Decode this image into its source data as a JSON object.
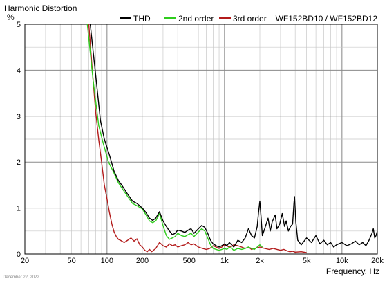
{
  "chart_data": {
    "type": "line",
    "title": "Harmonic Distortion",
    "ylabel": "%",
    "xlabel": "Frequency, Hz",
    "subtitle": "WF152BD10 / WF152BD12",
    "date": "December 22, 2022",
    "x_scale": "log",
    "xlim": [
      20,
      20000
    ],
    "ylim": [
      0,
      5
    ],
    "grid": true,
    "legend_position": "top",
    "x_ticks": [
      {
        "v": 20,
        "label": "20"
      },
      {
        "v": 50,
        "label": "50"
      },
      {
        "v": 100,
        "label": "100"
      },
      {
        "v": 200,
        "label": "200"
      },
      {
        "v": 500,
        "label": "500"
      },
      {
        "v": 1000,
        "label": "1k"
      },
      {
        "v": 2000,
        "label": "2k"
      },
      {
        "v": 5000,
        "label": "5k"
      },
      {
        "v": 10000,
        "label": "10k"
      },
      {
        "v": 20000,
        "label": "20k"
      }
    ],
    "y_ticks": [
      0,
      1,
      2,
      3,
      4,
      5
    ],
    "series": [
      {
        "name": "THD",
        "color": "#000000",
        "points": [
          [
            72,
            5
          ],
          [
            80,
            3.9
          ],
          [
            88,
            2.9
          ],
          [
            95,
            2.5
          ],
          [
            105,
            2.15
          ],
          [
            115,
            1.8
          ],
          [
            125,
            1.6
          ],
          [
            135,
            1.48
          ],
          [
            150,
            1.3
          ],
          [
            165,
            1.15
          ],
          [
            180,
            1.1
          ],
          [
            200,
            1.0
          ],
          [
            215,
            0.9
          ],
          [
            230,
            0.78
          ],
          [
            245,
            0.73
          ],
          [
            260,
            0.78
          ],
          [
            280,
            0.92
          ],
          [
            300,
            0.72
          ],
          [
            320,
            0.6
          ],
          [
            340,
            0.5
          ],
          [
            360,
            0.42
          ],
          [
            380,
            0.45
          ],
          [
            400,
            0.52
          ],
          [
            430,
            0.5
          ],
          [
            460,
            0.47
          ],
          [
            490,
            0.52
          ],
          [
            520,
            0.55
          ],
          [
            550,
            0.45
          ],
          [
            600,
            0.55
          ],
          [
            640,
            0.62
          ],
          [
            680,
            0.58
          ],
          [
            720,
            0.45
          ],
          [
            760,
            0.3
          ],
          [
            800,
            0.22
          ],
          [
            850,
            0.18
          ],
          [
            900,
            0.15
          ],
          [
            950,
            0.18
          ],
          [
            1000,
            0.22
          ],
          [
            1050,
            0.18
          ],
          [
            1100,
            0.25
          ],
          [
            1150,
            0.2
          ],
          [
            1200,
            0.15
          ],
          [
            1300,
            0.3
          ],
          [
            1400,
            0.25
          ],
          [
            1500,
            0.35
          ],
          [
            1600,
            0.55
          ],
          [
            1700,
            0.4
          ],
          [
            1800,
            0.35
          ],
          [
            1900,
            0.6
          ],
          [
            1950,
            0.9
          ],
          [
            2000,
            1.15
          ],
          [
            2050,
            0.8
          ],
          [
            2100,
            0.4
          ],
          [
            2200,
            0.55
          ],
          [
            2350,
            0.78
          ],
          [
            2450,
            0.5
          ],
          [
            2550,
            0.7
          ],
          [
            2700,
            0.85
          ],
          [
            2800,
            0.55
          ],
          [
            2950,
            0.65
          ],
          [
            3100,
            0.88
          ],
          [
            3250,
            0.6
          ],
          [
            3350,
            0.72
          ],
          [
            3500,
            0.5
          ],
          [
            3650,
            0.6
          ],
          [
            3800,
            0.65
          ],
          [
            3900,
            1.1
          ],
          [
            3950,
            1.25
          ],
          [
            4050,
            0.7
          ],
          [
            4200,
            0.3
          ],
          [
            4500,
            0.2
          ],
          [
            5000,
            0.35
          ],
          [
            5500,
            0.25
          ],
          [
            6000,
            0.4
          ],
          [
            6500,
            0.22
          ],
          [
            7000,
            0.3
          ],
          [
            7500,
            0.2
          ],
          [
            8000,
            0.25
          ],
          [
            8500,
            0.15
          ],
          [
            9000,
            0.2
          ],
          [
            10000,
            0.25
          ],
          [
            11000,
            0.18
          ],
          [
            12000,
            0.22
          ],
          [
            13000,
            0.28
          ],
          [
            14000,
            0.2
          ],
          [
            15000,
            0.25
          ],
          [
            16000,
            0.18
          ],
          [
            17000,
            0.3
          ],
          [
            18000,
            0.45
          ],
          [
            18500,
            0.55
          ],
          [
            19000,
            0.35
          ],
          [
            19500,
            0.4
          ],
          [
            20000,
            0.5
          ]
        ]
      },
      {
        "name": "2nd order",
        "color": "#2ecc1c",
        "points": [
          [
            68,
            5
          ],
          [
            76,
            3.8
          ],
          [
            85,
            2.8
          ],
          [
            93,
            2.4
          ],
          [
            103,
            2.0
          ],
          [
            113,
            1.8
          ],
          [
            125,
            1.55
          ],
          [
            135,
            1.42
          ],
          [
            150,
            1.25
          ],
          [
            165,
            1.1
          ],
          [
            180,
            1.05
          ],
          [
            200,
            0.98
          ],
          [
            215,
            0.85
          ],
          [
            230,
            0.72
          ],
          [
            245,
            0.68
          ],
          [
            260,
            0.72
          ],
          [
            280,
            0.88
          ],
          [
            300,
            0.62
          ],
          [
            320,
            0.4
          ],
          [
            340,
            0.32
          ],
          [
            360,
            0.35
          ],
          [
            380,
            0.38
          ],
          [
            400,
            0.45
          ],
          [
            430,
            0.4
          ],
          [
            460,
            0.38
          ],
          [
            490,
            0.42
          ],
          [
            520,
            0.45
          ],
          [
            550,
            0.38
          ],
          [
            600,
            0.48
          ],
          [
            640,
            0.55
          ],
          [
            680,
            0.5
          ],
          [
            720,
            0.35
          ],
          [
            760,
            0.2
          ],
          [
            800,
            0.12
          ],
          [
            850,
            0.1
          ],
          [
            900,
            0.08
          ],
          [
            950,
            0.1
          ],
          [
            1000,
            0.12
          ],
          [
            1050,
            0.1
          ],
          [
            1100,
            0.15
          ],
          [
            1150,
            0.12
          ],
          [
            1200,
            0.08
          ],
          [
            1300,
            0.12
          ],
          [
            1400,
            0.1
          ],
          [
            1500,
            0.12
          ],
          [
            1600,
            0.15
          ],
          [
            1700,
            0.12
          ],
          [
            1800,
            0.1
          ],
          [
            1900,
            0.15
          ],
          [
            2000,
            0.2
          ],
          [
            2100,
            0.15
          ]
        ]
      },
      {
        "name": "3rd order",
        "color": "#b31b1b",
        "points": [
          [
            70,
            5
          ],
          [
            75,
            4.0
          ],
          [
            80,
            3.1
          ],
          [
            85,
            2.5
          ],
          [
            90,
            2.0
          ],
          [
            95,
            1.5
          ],
          [
            100,
            1.2
          ],
          [
            105,
            0.9
          ],
          [
            110,
            0.65
          ],
          [
            115,
            0.48
          ],
          [
            120,
            0.38
          ],
          [
            125,
            0.32
          ],
          [
            130,
            0.3
          ],
          [
            140,
            0.25
          ],
          [
            150,
            0.3
          ],
          [
            160,
            0.35
          ],
          [
            170,
            0.28
          ],
          [
            180,
            0.33
          ],
          [
            190,
            0.2
          ],
          [
            200,
            0.15
          ],
          [
            210,
            0.08
          ],
          [
            220,
            0.05
          ],
          [
            230,
            0.1
          ],
          [
            240,
            0.05
          ],
          [
            260,
            0.12
          ],
          [
            280,
            0.25
          ],
          [
            300,
            0.18
          ],
          [
            320,
            0.15
          ],
          [
            340,
            0.22
          ],
          [
            360,
            0.18
          ],
          [
            380,
            0.2
          ],
          [
            400,
            0.15
          ],
          [
            430,
            0.18
          ],
          [
            460,
            0.2
          ],
          [
            490,
            0.25
          ],
          [
            520,
            0.2
          ],
          [
            550,
            0.22
          ],
          [
            600,
            0.15
          ],
          [
            650,
            0.12
          ],
          [
            700,
            0.1
          ],
          [
            750,
            0.12
          ],
          [
            800,
            0.18
          ],
          [
            850,
            0.15
          ],
          [
            900,
            0.12
          ],
          [
            950,
            0.15
          ],
          [
            1000,
            0.2
          ],
          [
            1100,
            0.15
          ],
          [
            1200,
            0.2
          ],
          [
            1300,
            0.18
          ],
          [
            1400,
            0.15
          ],
          [
            1500,
            0.12
          ],
          [
            1600,
            0.15
          ],
          [
            1700,
            0.1
          ],
          [
            1800,
            0.12
          ],
          [
            2000,
            0.15
          ],
          [
            2200,
            0.12
          ],
          [
            2400,
            0.1
          ],
          [
            2600,
            0.12
          ],
          [
            2800,
            0.1
          ],
          [
            3000,
            0.08
          ],
          [
            3200,
            0.1
          ],
          [
            3400,
            0.07
          ],
          [
            3600,
            0.05
          ],
          [
            3800,
            0.06
          ],
          [
            4000,
            0.04
          ],
          [
            4500,
            0.05
          ],
          [
            5000,
            0.03
          ]
        ]
      }
    ]
  }
}
